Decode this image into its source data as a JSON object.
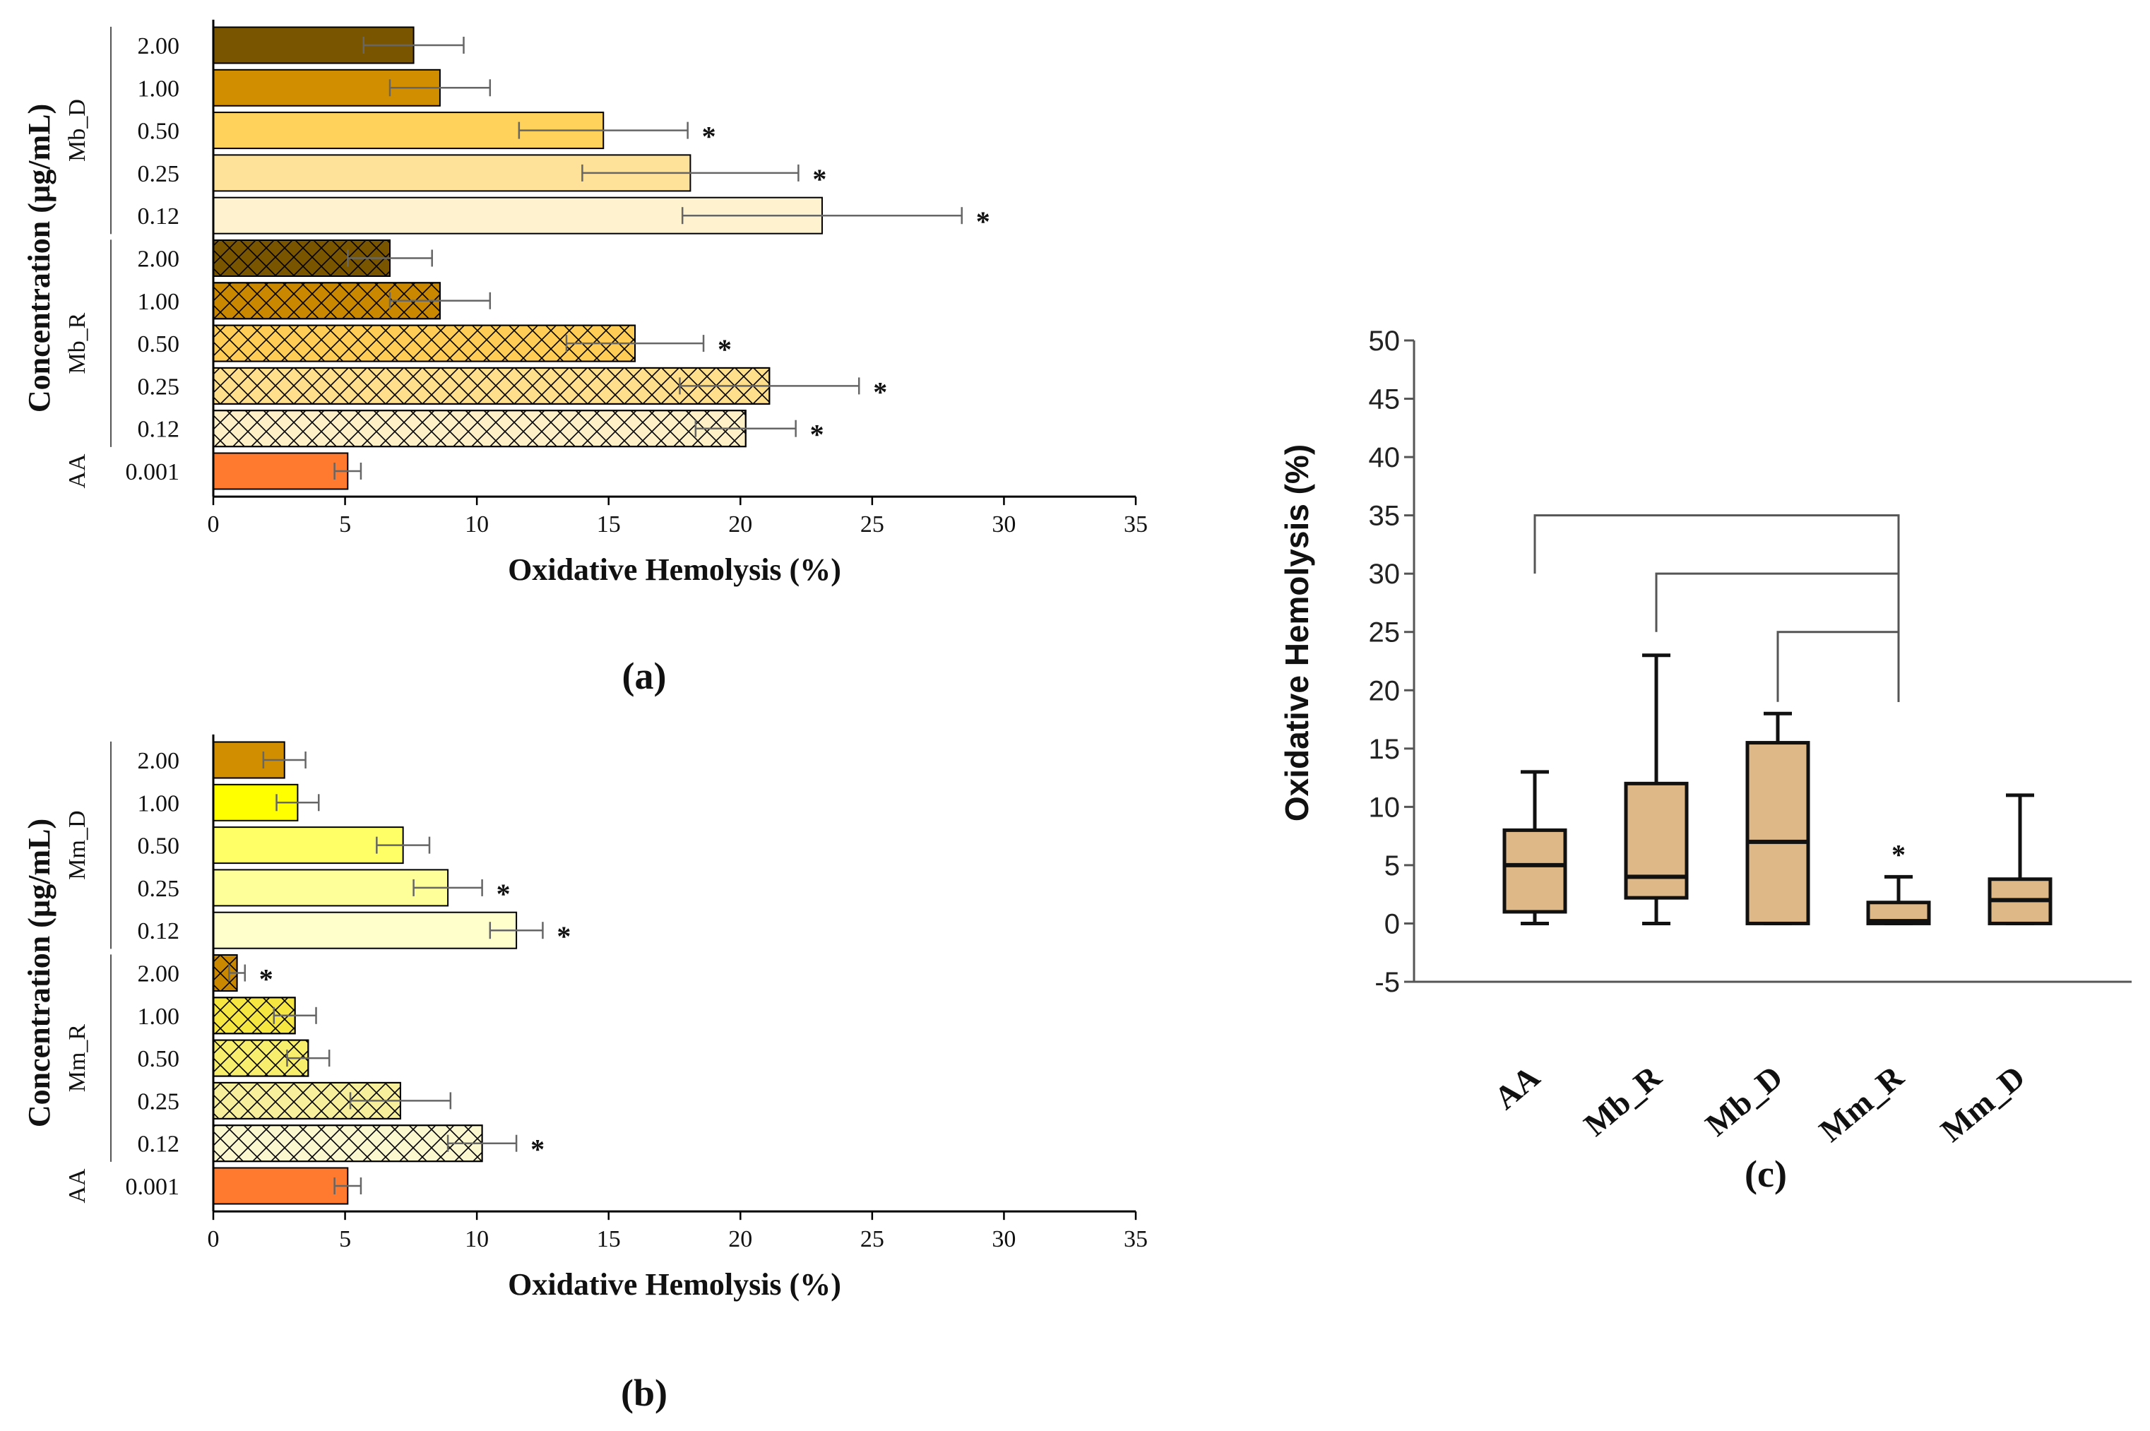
{
  "chart_data": [
    {
      "id": "a",
      "type": "bar",
      "orientation": "horizontal",
      "panel_label": "(a)",
      "xlabel": "Oxidative Hemolysis (%)",
      "ylabel": "Concentration (µg/mL)",
      "xlim": [
        0,
        35
      ],
      "xticks": [
        "0",
        "5",
        "10",
        "15",
        "20",
        "25",
        "30",
        "35"
      ],
      "groups": [
        {
          "name": "Mb_D",
          "hatched": false,
          "bars": [
            {
              "label": "2.00",
              "value": 7.6,
              "err": 1.9,
              "star": false,
              "color": "#7a5500"
            },
            {
              "label": "1.00",
              "value": 8.6,
              "err": 1.9,
              "star": false,
              "color": "#d18f00"
            },
            {
              "label": "0.50",
              "value": 14.8,
              "err": 3.2,
              "star": true,
              "color": "#ffd25c"
            },
            {
              "label": "0.25",
              "value": 18.1,
              "err": 4.1,
              "star": true,
              "color": "#ffe29a"
            },
            {
              "label": "0.12",
              "value": 23.1,
              "err": 5.3,
              "star": true,
              "color": "#fff2cf"
            }
          ]
        },
        {
          "name": "Mb_R",
          "hatched": true,
          "bars": [
            {
              "label": "2.00",
              "value": 6.7,
              "err": 1.6,
              "star": false,
              "color": "#7a5500"
            },
            {
              "label": "1.00",
              "value": 8.6,
              "err": 1.9,
              "star": false,
              "color": "#c98800"
            },
            {
              "label": "0.50",
              "value": 16.0,
              "err": 2.6,
              "star": true,
              "color": "#ffcd55"
            },
            {
              "label": "0.25",
              "value": 21.1,
              "err": 3.4,
              "star": true,
              "color": "#ffde8c"
            },
            {
              "label": "0.12",
              "value": 20.2,
              "err": 1.9,
              "star": true,
              "color": "#fff0c8"
            }
          ]
        },
        {
          "name": "AA",
          "hatched": false,
          "bars": [
            {
              "label": "0.001",
              "value": 5.1,
              "err": 0.5,
              "star": false,
              "color": "#ff7a2e"
            }
          ]
        }
      ]
    },
    {
      "id": "b",
      "type": "bar",
      "orientation": "horizontal",
      "panel_label": "(b)",
      "xlabel": "Oxidative Hemolysis (%)",
      "ylabel": "Concentration (µg/mL)",
      "xlim": [
        0,
        35
      ],
      "xticks": [
        "0",
        "5",
        "10",
        "15",
        "20",
        "25",
        "30",
        "35"
      ],
      "groups": [
        {
          "name": "Mm_D",
          "hatched": false,
          "bars": [
            {
              "label": "2.00",
              "value": 2.7,
              "err": 0.8,
              "star": false,
              "color": "#d18f00"
            },
            {
              "label": "1.00",
              "value": 3.2,
              "err": 0.8,
              "star": false,
              "color": "#ffff00"
            },
            {
              "label": "0.50",
              "value": 7.2,
              "err": 1.0,
              "star": false,
              "color": "#ffff66"
            },
            {
              "label": "0.25",
              "value": 8.9,
              "err": 1.3,
              "star": true,
              "color": "#ffff99"
            },
            {
              "label": "0.12",
              "value": 11.5,
              "err": 1.0,
              "star": true,
              "color": "#ffffcc"
            }
          ]
        },
        {
          "name": "Mm_R",
          "hatched": true,
          "bars": [
            {
              "label": "2.00",
              "value": 0.9,
              "err": 0.3,
              "star": true,
              "color": "#c98800"
            },
            {
              "label": "1.00",
              "value": 3.1,
              "err": 0.8,
              "star": false,
              "color": "#f5e642"
            },
            {
              "label": "0.50",
              "value": 3.6,
              "err": 0.8,
              "star": false,
              "color": "#f7ee6e"
            },
            {
              "label": "0.25",
              "value": 7.1,
              "err": 1.9,
              "star": false,
              "color": "#f7ef9c"
            },
            {
              "label": "0.12",
              "value": 10.2,
              "err": 1.3,
              "star": true,
              "color": "#fbf7cf"
            }
          ]
        },
        {
          "name": "AA",
          "hatched": false,
          "bars": [
            {
              "label": "0.001",
              "value": 5.1,
              "err": 0.5,
              "star": false,
              "color": "#ff7a2e"
            }
          ]
        }
      ]
    },
    {
      "id": "c",
      "type": "box",
      "panel_label": "(c)",
      "ylabel": "Oxidative Hemolysis (%)",
      "ylim": [
        -5,
        50
      ],
      "yticks": [
        "50",
        "45",
        "40",
        "35",
        "30",
        "25",
        "20",
        "15",
        "10",
        "5",
        "0",
        "-5"
      ],
      "categories": [
        "AA",
        "Mb_R",
        "Mb_D",
        "Mm_R",
        "Mm_D"
      ],
      "box_color": "#deb887",
      "boxes": [
        {
          "min": 0,
          "q1": 1,
          "median": 5,
          "q3": 8,
          "max": 13,
          "star": false
        },
        {
          "min": 0,
          "q1": 2.2,
          "median": 4,
          "q3": 12,
          "max": 23,
          "star": false
        },
        {
          "min": 0,
          "q1": 0,
          "median": 7,
          "q3": 15.5,
          "max": 18,
          "star": false
        },
        {
          "min": 0,
          "q1": 0,
          "median": 0.2,
          "q3": 1.8,
          "max": 4,
          "star": true
        },
        {
          "min": 0,
          "q1": 0,
          "median": 2,
          "q3": 3.8,
          "max": 11,
          "star": false
        }
      ],
      "brackets": [
        {
          "from": "AA",
          "to": "Mm_R",
          "level": 35,
          "left_tip": 30
        },
        {
          "from": "Mb_R",
          "to": "Mm_R",
          "level": 30,
          "left_tip": 25
        },
        {
          "from": "Mb_D",
          "to": "Mm_R",
          "level": 25,
          "left_tip": 19
        }
      ],
      "bracket_right_tip": 19,
      "star_text": "*"
    }
  ]
}
